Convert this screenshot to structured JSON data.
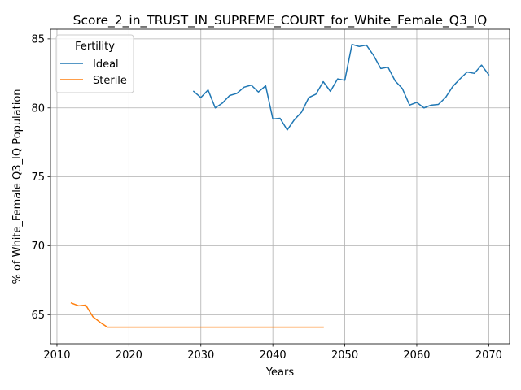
{
  "chart_data": {
    "type": "line",
    "title": "Score_2_in_TRUST_IN_SUPREME_COURT_for_White_Female_Q3_IQ",
    "xlabel": "Years",
    "ylabel": "% of White_Female Q3_IQ Population",
    "xlim": [
      2009.1,
      2072.9
    ],
    "ylim": [
      62.9,
      85.7
    ],
    "xticks": [
      2010,
      2020,
      2030,
      2040,
      2050,
      2060,
      2070
    ],
    "yticks": [
      65,
      70,
      75,
      80,
      85
    ],
    "grid": true,
    "legend": {
      "title": "Fertility",
      "placement": "top-left"
    },
    "series": [
      {
        "name": "Ideal",
        "color": "#1f77b4",
        "x": [
          2029,
          2030,
          2031,
          2032,
          2033,
          2034,
          2035,
          2036,
          2037,
          2038,
          2039,
          2040,
          2041,
          2042,
          2043,
          2044,
          2045,
          2046,
          2047,
          2048,
          2049,
          2050,
          2051,
          2052,
          2053,
          2054,
          2055,
          2056,
          2057,
          2058,
          2059,
          2060,
          2061,
          2062,
          2063,
          2064,
          2065,
          2066,
          2067,
          2068,
          2069,
          2070
        ],
        "y": [
          81.2,
          80.75,
          81.3,
          80.0,
          80.35,
          80.9,
          81.05,
          81.5,
          81.65,
          81.15,
          81.6,
          79.2,
          79.25,
          78.4,
          79.15,
          79.7,
          80.75,
          81.0,
          81.9,
          81.2,
          82.1,
          82.0,
          84.6,
          84.45,
          84.55,
          83.8,
          82.85,
          82.95,
          81.95,
          81.4,
          80.2,
          80.4,
          80.0,
          80.2,
          80.25,
          80.75,
          81.55,
          82.1,
          82.6,
          82.5,
          83.1,
          82.4
        ]
      },
      {
        "name": "Sterile",
        "color": "#ff7f0e",
        "x": [
          2012,
          2013,
          2014,
          2015,
          2016,
          2017,
          2018,
          2019,
          2020,
          2021,
          2022,
          2023,
          2024,
          2025,
          2026,
          2027,
          2028,
          2029,
          2030,
          2031,
          2032,
          2033,
          2034,
          2035,
          2036,
          2037,
          2038,
          2039,
          2040,
          2041,
          2042,
          2043,
          2044,
          2045,
          2046,
          2047
        ],
        "y": [
          65.85,
          65.65,
          65.7,
          64.85,
          64.45,
          64.1,
          64.1,
          64.1,
          64.1,
          64.1,
          64.1,
          64.1,
          64.1,
          64.1,
          64.1,
          64.1,
          64.1,
          64.1,
          64.1,
          64.1,
          64.1,
          64.1,
          64.1,
          64.1,
          64.1,
          64.1,
          64.1,
          64.1,
          64.1,
          64.1,
          64.1,
          64.1,
          64.1,
          64.1,
          64.1,
          64.1
        ]
      }
    ]
  }
}
